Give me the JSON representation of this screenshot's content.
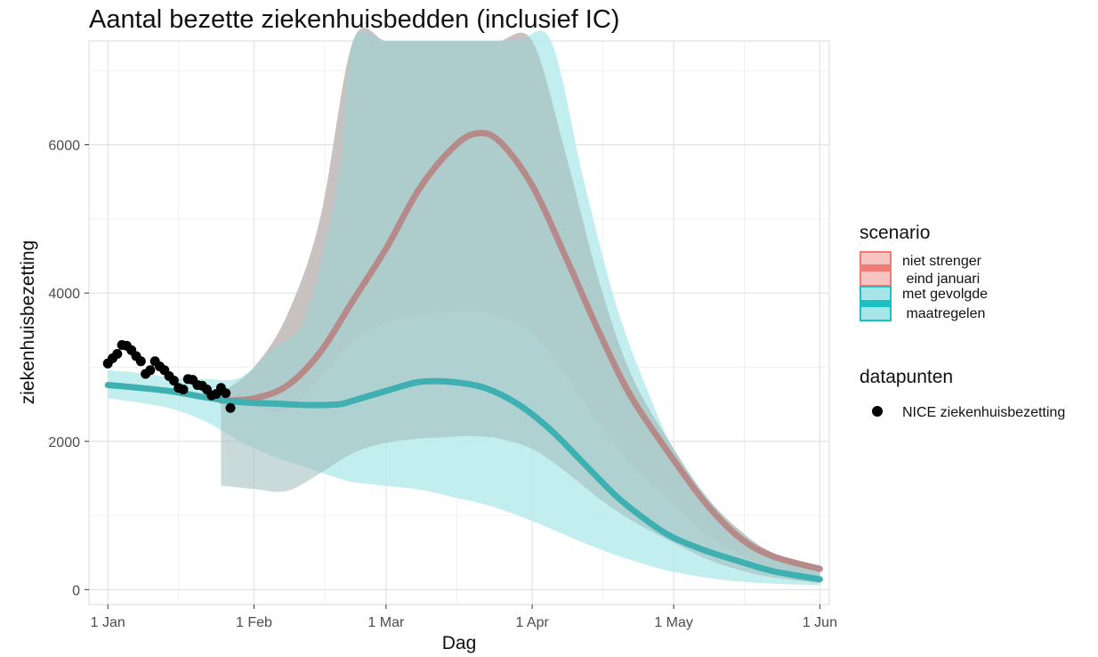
{
  "chart_data": {
    "type": "line",
    "title": "Aantal bezette ziekenhuisbedden (inclusief IC)",
    "xlabel": "Dag",
    "ylabel": "ziekenhuisbezetting",
    "x_unit": "day",
    "xlim": [
      "2020-12-28",
      "2021-06-03"
    ],
    "ylim": [
      -200,
      7400
    ],
    "x_ticks": [
      {
        "date": "2021-01-01",
        "label": "1 Jan"
      },
      {
        "date": "2021-02-01",
        "label": "1 Feb"
      },
      {
        "date": "2021-03-01",
        "label": "1 Mar"
      },
      {
        "date": "2021-04-01",
        "label": "1 Apr"
      },
      {
        "date": "2021-05-01",
        "label": "1 May"
      },
      {
        "date": "2021-06-01",
        "label": "1 Jun"
      }
    ],
    "x_minor_ticks": [
      "2021-01-16",
      "2021-02-16",
      "2021-03-16",
      "2021-04-16",
      "2021-05-16"
    ],
    "y_ticks": [
      0,
      2000,
      4000,
      6000
    ],
    "y_minor_ticks": [
      1000,
      3000,
      5000,
      7000
    ],
    "grid": true,
    "legend_position": "right",
    "legend": {
      "scenario_title": "scenario",
      "scenario_items": [
        {
          "label_line1": "niet strenger",
          "label_line2": " eind januari",
          "color": "#F07C77",
          "fill": "#F8C4C2"
        },
        {
          "label_line1": "met gevolgde",
          "label_line2": " maatregelen",
          "color": "#1DBFC4",
          "fill": "#A7E6E8"
        }
      ],
      "points_title": "datapunten",
      "points_label": "NICE ziekenhuisbezetting"
    },
    "series": [
      {
        "name": "niet strenger eind januari",
        "color": "#b58a88",
        "band_color": "#F9C9C7",
        "x": [
          "2021-01-25",
          "2021-02-01",
          "2021-02-08",
          "2021-02-15",
          "2021-02-22",
          "2021-03-01",
          "2021-03-08",
          "2021-03-15",
          "2021-03-20",
          "2021-03-25",
          "2021-04-01",
          "2021-04-08",
          "2021-04-15",
          "2021-04-22",
          "2021-05-01",
          "2021-05-08",
          "2021-05-15",
          "2021-05-22",
          "2021-06-01"
        ],
        "values": [
          2550,
          2580,
          2750,
          3200,
          3900,
          4600,
          5400,
          5950,
          6150,
          6050,
          5450,
          4500,
          3500,
          2600,
          1750,
          1150,
          700,
          450,
          280
        ],
        "lower": [
          2550,
          2470,
          2420,
          2850,
          3350,
          3600,
          3700,
          3750,
          3760,
          3700,
          3450,
          2900,
          2250,
          1700,
          1150,
          750,
          480,
          300,
          160
        ],
        "upper": [
          2650,
          3000,
          3700,
          5000,
          7600,
          9200,
          9900,
          9900,
          9900,
          9500,
          7500,
          5900,
          4200,
          2900,
          1900,
          1250,
          800,
          500,
          320
        ]
      },
      {
        "name": "met gevolgde maatregelen",
        "color": "#3fb0b2",
        "band_color": "#B2E9EA",
        "x": [
          "2021-01-01",
          "2021-01-08",
          "2021-01-15",
          "2021-01-22",
          "2021-01-29",
          "2021-02-05",
          "2021-02-12",
          "2021-02-19",
          "2021-02-22",
          "2021-03-01",
          "2021-03-08",
          "2021-03-15",
          "2021-03-22",
          "2021-03-29",
          "2021-04-05",
          "2021-04-12",
          "2021-04-19",
          "2021-04-26",
          "2021-05-01",
          "2021-05-08",
          "2021-05-15",
          "2021-05-22",
          "2021-06-01"
        ],
        "values": [
          2760,
          2720,
          2670,
          2590,
          2530,
          2510,
          2490,
          2500,
          2550,
          2680,
          2800,
          2800,
          2720,
          2500,
          2150,
          1700,
          1250,
          900,
          700,
          520,
          380,
          250,
          140
        ],
        "lower": [
          2580,
          2520,
          2430,
          2260,
          2000,
          1800,
          1650,
          1500,
          1450,
          1400,
          1350,
          1250,
          1150,
          1000,
          820,
          630,
          460,
          320,
          240,
          160,
          110,
          80,
          60
        ],
        "upper": [
          2960,
          2920,
          2860,
          2840,
          2860,
          3250,
          3700,
          5600,
          9900,
          9900,
          9900,
          9900,
          9800,
          9600,
          7400,
          5500,
          3800,
          2600,
          1900,
          1250,
          780,
          480,
          230
        ]
      }
    ],
    "points": {
      "name": "NICE ziekenhuisbezetting",
      "color": "#000000",
      "x": [
        "2021-01-01",
        "2021-01-02",
        "2021-01-03",
        "2021-01-04",
        "2021-01-05",
        "2021-01-06",
        "2021-01-07",
        "2021-01-08",
        "2021-01-09",
        "2021-01-10",
        "2021-01-11",
        "2021-01-12",
        "2021-01-13",
        "2021-01-14",
        "2021-01-15",
        "2021-01-16",
        "2021-01-17",
        "2021-01-18",
        "2021-01-19",
        "2021-01-20",
        "2021-01-21",
        "2021-01-22",
        "2021-01-23",
        "2021-01-24",
        "2021-01-25",
        "2021-01-26",
        "2021-01-27"
      ],
      "values": [
        3050,
        3120,
        3180,
        3300,
        3290,
        3230,
        3150,
        3080,
        2910,
        2960,
        3080,
        3010,
        2960,
        2880,
        2820,
        2720,
        2700,
        2840,
        2830,
        2760,
        2750,
        2700,
        2620,
        2640,
        2720,
        2650,
        2450
      ]
    }
  }
}
